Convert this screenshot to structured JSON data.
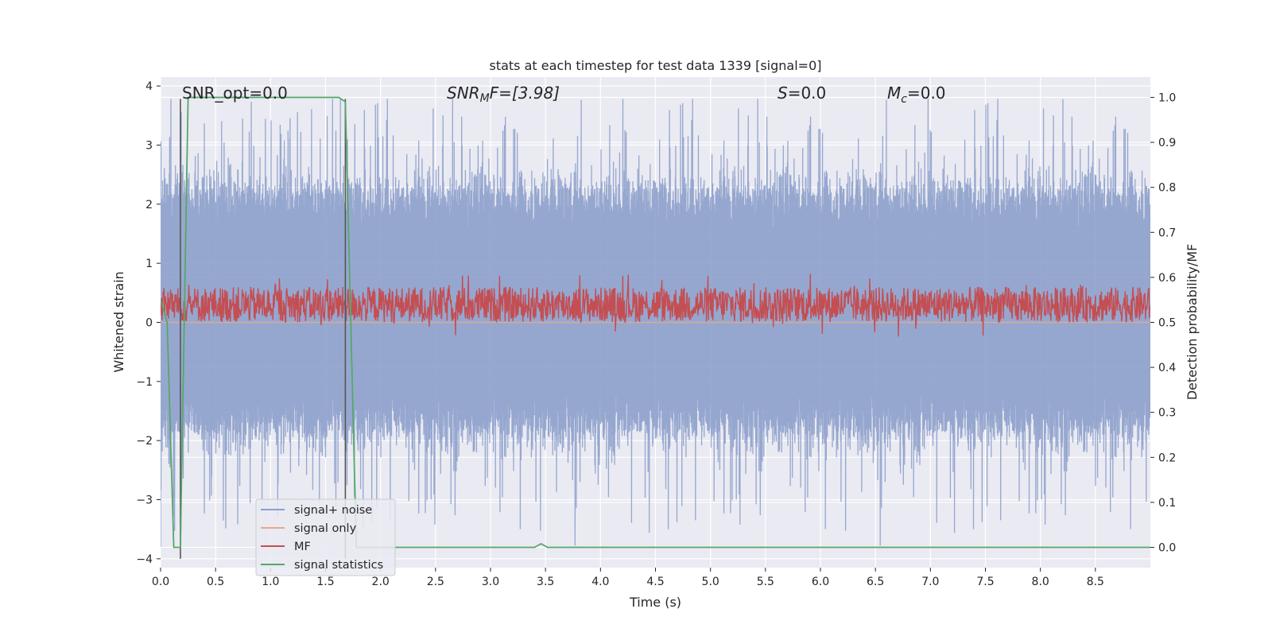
{
  "chart_data": {
    "type": "line",
    "title": "stats at each timestep for test data 1339 [signal=0]",
    "xlabel": "Time (s)",
    "ylabel_left": "Whitened strain",
    "ylabel_right": "Detection probability/MF",
    "xlim": [
      0.0,
      9.0
    ],
    "ylim_left": [
      -4.15,
      4.15
    ],
    "ylim_right": [
      -0.045,
      1.045
    ],
    "x_ticks": [
      0.0,
      0.5,
      1.0,
      1.5,
      2.0,
      2.5,
      3.0,
      3.5,
      4.0,
      4.5,
      5.0,
      5.5,
      6.0,
      6.5,
      7.0,
      7.5,
      8.0,
      8.5
    ],
    "x_tick_labels": [
      "0.0",
      "0.5",
      "1.0",
      "1.5",
      "2.0",
      "2.5",
      "3.0",
      "3.5",
      "4.0",
      "4.5",
      "5.0",
      "5.5",
      "6.0",
      "6.5",
      "7.0",
      "7.5",
      "8.0",
      "8.5"
    ],
    "y_left_ticks": [
      4,
      3,
      2,
      1,
      0,
      -1,
      -2,
      -3,
      -4
    ],
    "y_left_tick_labels": [
      "4",
      "3",
      "2",
      "1",
      "0",
      "−1",
      "−2",
      "−3",
      "−4"
    ],
    "y_right_ticks": [
      1.0,
      0.9,
      0.8,
      0.7,
      0.6,
      0.5,
      0.4,
      0.3,
      0.2,
      0.1,
      0.0
    ],
    "y_right_tick_labels": [
      "1.0",
      "0.9",
      "0.8",
      "0.7",
      "0.6",
      "0.5",
      "0.4",
      "0.3",
      "0.2",
      "0.1",
      "0.0"
    ],
    "annotations": {
      "snr_opt": "SNR_opt=0.0",
      "snr_mf_main": "SNR",
      "snr_mf_sub": "M",
      "snr_mf_rest": "F=[3.98]",
      "s_main": "S",
      "s_rest": "=0.0",
      "mc_main": "M",
      "mc_sub": "c",
      "mc_rest": "=0.0"
    },
    "legend": {
      "placement": "lower-left",
      "entries": [
        "signal+ noise",
        "signal only",
        "MF",
        "signal statistics"
      ]
    },
    "series": [
      {
        "name": "signal+ noise",
        "axis": "left",
        "color": "#8da0cb",
        "style": "noise band",
        "typical_range": [
          -1.7,
          2.1
        ],
        "peak_max": 3.78,
        "peak_min": -3.8
      },
      {
        "name": "signal only",
        "axis": "left",
        "color": "#e8a88a",
        "values": "0 at all times"
      },
      {
        "name": "MF",
        "axis": "left",
        "color": "#c44e52",
        "style": "noise band",
        "typical_range": [
          0.0,
          0.6
        ]
      },
      {
        "name": "signal statistics",
        "axis": "right",
        "color": "#55a868",
        "x": [
          0.0,
          0.06,
          0.12,
          0.18,
          0.25,
          0.3,
          1.62,
          1.68,
          1.78,
          1.82,
          3.4,
          3.46,
          3.52,
          3.58,
          9.0
        ],
        "y": [
          0.55,
          0.5,
          0.0,
          0.0,
          1.0,
          1.0,
          1.0,
          0.99,
          0.0,
          0.0,
          0.0,
          0.008,
          0.0,
          0.0,
          0.0
        ]
      }
    ],
    "vertical_markers": [
      {
        "x": 0.18,
        "y_left": [
          -4.0,
          3.78
        ],
        "color": "#555555"
      },
      {
        "x": 1.68,
        "y_left": [
          -4.0,
          3.78
        ],
        "color": "#555555"
      }
    ],
    "grid": true
  }
}
